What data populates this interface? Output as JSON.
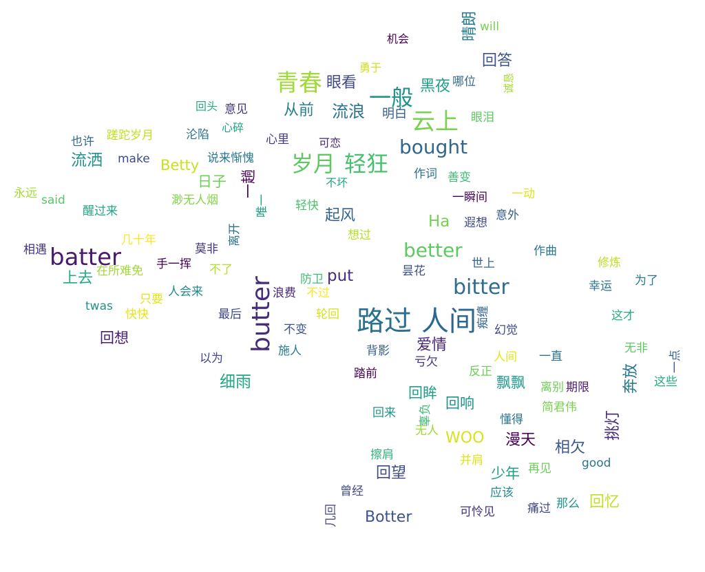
{
  "words": [
    {
      "text": "路过",
      "color": "#2a6f8e"
    },
    {
      "text": "人间",
      "color": "#2c688e"
    },
    {
      "text": "butter",
      "color": "#472c7a"
    },
    {
      "text": "batter",
      "color": "#481a6c"
    },
    {
      "text": "bitter",
      "color": "#2f6c8e"
    },
    {
      "text": "better",
      "color": "#5ec962"
    },
    {
      "text": "bought",
      "color": "#31668e"
    },
    {
      "text": "Botter",
      "color": "#3b528b"
    },
    {
      "text": "岁月",
      "color": "#5ec962"
    },
    {
      "text": "轻狂",
      "color": "#48c16e"
    },
    {
      "text": "青春",
      "color": "#a0da39"
    },
    {
      "text": "一般",
      "color": "#20928c"
    },
    {
      "text": "云上",
      "color": "#7ad151"
    },
    {
      "text": "流浪",
      "color": "#2c728e"
    },
    {
      "text": "从前",
      "color": "#27808e"
    },
    {
      "text": "眼看",
      "color": "#3e4989"
    },
    {
      "text": "黑夜",
      "color": "#1f9e89"
    },
    {
      "text": "回答",
      "color": "#3b528b"
    },
    {
      "text": "晴朗",
      "color": "#287d8e"
    },
    {
      "text": "机会",
      "color": "#440154"
    },
    {
      "text": "will",
      "color": "#7ad151"
    },
    {
      "text": "勇于",
      "color": "#d0e11c"
    },
    {
      "text": "哪位",
      "color": "#31688e"
    },
    {
      "text": "诚恳",
      "color": "#a5db36"
    },
    {
      "text": "明白",
      "color": "#355f8d"
    },
    {
      "text": "眼泪",
      "color": "#5ec962"
    },
    {
      "text": "回头",
      "color": "#25ab82"
    },
    {
      "text": "意见",
      "color": "#46337e"
    },
    {
      "text": "蹉跎岁月",
      "color": "#c2df23"
    },
    {
      "text": "沦陷",
      "color": "#2c728e"
    },
    {
      "text": "心碎",
      "color": "#1fa188"
    },
    {
      "text": "心里",
      "color": "#443a83"
    },
    {
      "text": "可恋",
      "color": "#482576"
    },
    {
      "text": "也许",
      "color": "#31688e"
    },
    {
      "text": "流洒",
      "color": "#21918c"
    },
    {
      "text": "make",
      "color": "#3e4989"
    },
    {
      "text": "Betty",
      "color": "#c8e020"
    },
    {
      "text": "说来惭愧",
      "color": "#2a788e"
    },
    {
      "text": "日子",
      "color": "#6ece58"
    },
    {
      "text": "不坏",
      "color": "#22a884"
    },
    {
      "text": "作词",
      "color": "#2c728e"
    },
    {
      "text": "善变",
      "color": "#3dbc74"
    },
    {
      "text": "一趟",
      "color": "#440154"
    },
    {
      "text": "唯一",
      "color": "#1fa088"
    },
    {
      "text": "永远",
      "color": "#a5db36"
    },
    {
      "text": "said",
      "color": "#56c667"
    },
    {
      "text": "醒过来",
      "color": "#22a884"
    },
    {
      "text": "渺无人烟",
      "color": "#84d44b"
    },
    {
      "text": "轻快",
      "color": "#4ac16d"
    },
    {
      "text": "起风",
      "color": "#33638d"
    },
    {
      "text": "一瞬间",
      "color": "#440154"
    },
    {
      "text": "一动",
      "color": "#dfe318"
    },
    {
      "text": "Ha",
      "color": "#75d054"
    },
    {
      "text": "遐想",
      "color": "#3e4989"
    },
    {
      "text": "意外",
      "color": "#355f8d"
    },
    {
      "text": "离开",
      "color": "#2c728e"
    },
    {
      "text": "想过",
      "color": "#b5de2b"
    },
    {
      "text": "几十年",
      "color": "#fde725"
    },
    {
      "text": "相遇",
      "color": "#46337e"
    },
    {
      "text": "莫非",
      "color": "#46337e"
    },
    {
      "text": "作曲",
      "color": "#2a788e"
    },
    {
      "text": "手一挥",
      "color": "#440154"
    },
    {
      "text": "不了",
      "color": "#b5de2b"
    },
    {
      "text": "世上",
      "color": "#33638d"
    },
    {
      "text": "修炼",
      "color": "#bddf26"
    },
    {
      "text": "上去",
      "color": "#22a884"
    },
    {
      "text": "在所难免",
      "color": "#a0da39"
    },
    {
      "text": "put",
      "color": "#472d7b"
    },
    {
      "text": "昙花",
      "color": "#3b528b"
    },
    {
      "text": "防卫",
      "color": "#3fbc73"
    },
    {
      "text": "幸运",
      "color": "#29798e"
    },
    {
      "text": "为了",
      "color": "#2a788e"
    },
    {
      "text": "浪费",
      "color": "#482878"
    },
    {
      "text": "不过",
      "color": "#fde725"
    },
    {
      "text": "人会来",
      "color": "#23898e"
    },
    {
      "text": "只要",
      "color": "#e5e419"
    },
    {
      "text": "twas",
      "color": "#21918c"
    },
    {
      "text": "快快",
      "color": "#e5e419"
    },
    {
      "text": "最后",
      "color": "#3e4989"
    },
    {
      "text": "轮回",
      "color": "#d8e219"
    },
    {
      "text": "痴缠",
      "color": "#33638d"
    },
    {
      "text": "这才",
      "color": "#28ae80"
    },
    {
      "text": "幻觉",
      "color": "#3e4989"
    },
    {
      "text": "不变",
      "color": "#3b528b"
    },
    {
      "text": "回想",
      "color": "#481d6f"
    },
    {
      "text": "爱情",
      "color": "#482475"
    },
    {
      "text": "无非",
      "color": "#5ec962"
    },
    {
      "text": "以为",
      "color": "#414487"
    },
    {
      "text": "施人",
      "color": "#287c8e"
    },
    {
      "text": "背影",
      "color": "#365c8d"
    },
    {
      "text": "亏欠",
      "color": "#46337e"
    },
    {
      "text": "人间",
      "color": "#e5e419"
    },
    {
      "text": "一直",
      "color": "#2c728e"
    },
    {
      "text": "奔放",
      "color": "#2a788e"
    },
    {
      "text": "一点",
      "color": "#33638d"
    },
    {
      "text": "细雨",
      "color": "#21a685"
    },
    {
      "text": "踏前",
      "color": "#440154"
    },
    {
      "text": "反正",
      "color": "#6ece58"
    },
    {
      "text": "飘飘",
      "color": "#1f9a8a"
    },
    {
      "text": "这些",
      "color": "#25ab82"
    },
    {
      "text": "离别",
      "color": "#70cf57"
    },
    {
      "text": "期限",
      "color": "#481a6c"
    },
    {
      "text": "回眸",
      "color": "#1f9e89"
    },
    {
      "text": "回响",
      "color": "#20928c"
    },
    {
      "text": "回来",
      "color": "#1f958b"
    },
    {
      "text": "辜负",
      "color": "#3dbc74"
    },
    {
      "text": "简君伟",
      "color": "#7ad151"
    },
    {
      "text": "挑灯",
      "color": "#472c7a"
    },
    {
      "text": "懂得",
      "color": "#2c738e"
    },
    {
      "text": "无人",
      "color": "#a0da39"
    },
    {
      "text": "WOO",
      "color": "#d8e219"
    },
    {
      "text": "漫天",
      "color": "#440154"
    },
    {
      "text": "相欠",
      "color": "#39568c"
    },
    {
      "text": "擦肩",
      "color": "#2fb47c"
    },
    {
      "text": "并肩",
      "color": "#dfe318"
    },
    {
      "text": "good",
      "color": "#2c738e"
    },
    {
      "text": "少年",
      "color": "#1fa088"
    },
    {
      "text": "再见",
      "color": "#6ece58"
    },
    {
      "text": "回望",
      "color": "#3e4a89"
    },
    {
      "text": "应该",
      "color": "#23898e"
    },
    {
      "text": "曾经",
      "color": "#3e4989"
    },
    {
      "text": "那么",
      "color": "#1f958b"
    },
    {
      "text": "回忆",
      "color": "#c2df23"
    },
    {
      "text": "痛过",
      "color": "#3e4989"
    },
    {
      "text": "可怜见",
      "color": "#46337e"
    },
    {
      "text": "几回",
      "color": "#4e4c8c"
    }
  ]
}
